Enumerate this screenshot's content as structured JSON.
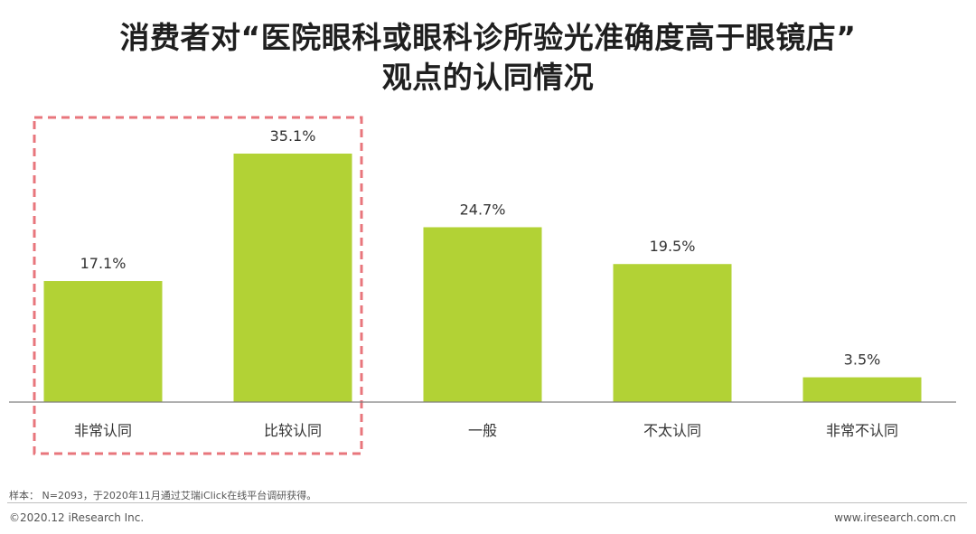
{
  "title_line1": "消费者对“医院眼科或眼科诊所验光准确度高于眼镜店”",
  "title_line2": "观点的认同情况",
  "chart_data": {
    "type": "bar",
    "categories": [
      "非常认同",
      "比较认同",
      "一般",
      "不太认同",
      "非常不认同"
    ],
    "values": [
      17.1,
      35.1,
      24.7,
      19.5,
      3.5
    ],
    "value_labels": [
      "17.1%",
      "35.1%",
      "24.7%",
      "19.5%",
      "3.5%"
    ],
    "ylim": [
      0,
      35.1
    ],
    "bar_color": "#b2d235",
    "grid": false,
    "highlight": {
      "categories": [
        "非常认同",
        "比较认同"
      ],
      "style": "dashed-box",
      "color": "#e8767c"
    }
  },
  "footer": {
    "note": "样本：  N=2093，于2020年11月通过艾瑞iClick在线平台调研获得。",
    "copyright": "©2020.12 iResearch Inc.",
    "website": "www.iresearch.com.cn"
  }
}
